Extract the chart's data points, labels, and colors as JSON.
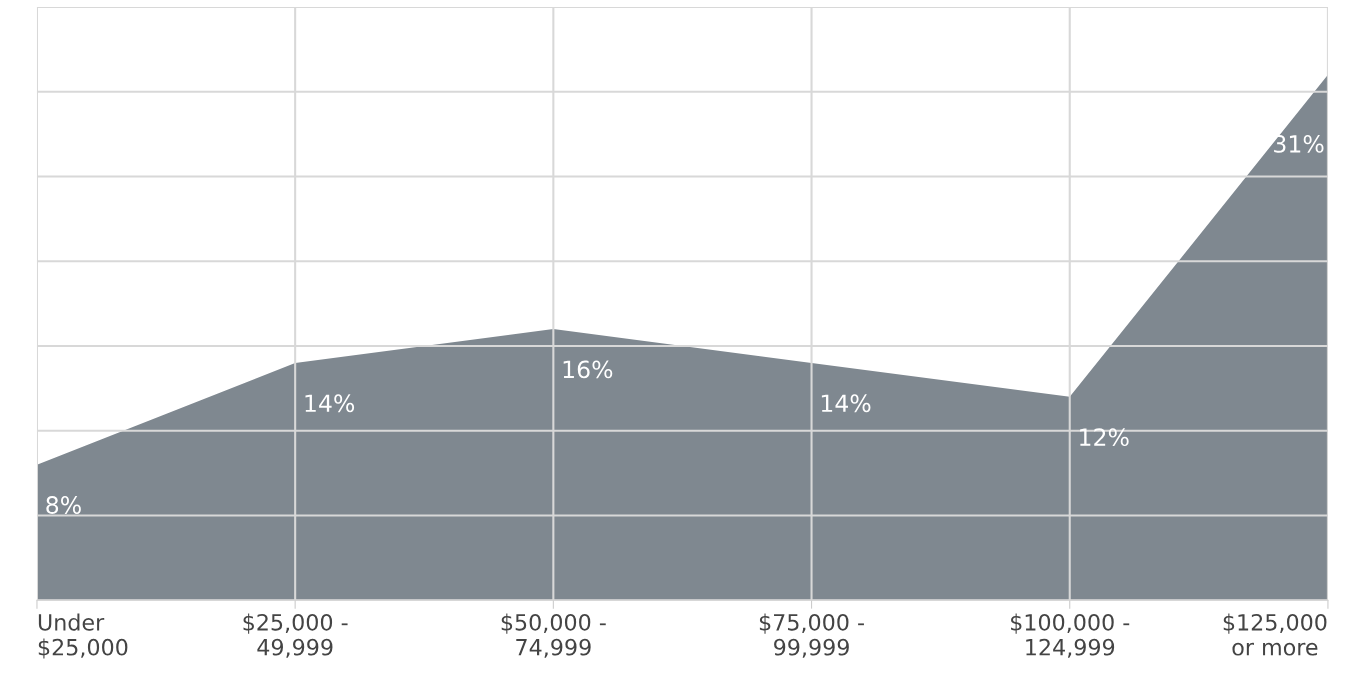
{
  "chart_data": {
    "type": "area",
    "categories": [
      "Under\n$25,000",
      "$25,000 -\n49,999",
      "$50,000 -\n74,999",
      "$75,000 -\n99,999",
      "$100,000 -\n124,999",
      "$125,000\nor more"
    ],
    "values": [
      8,
      14,
      16,
      14,
      12,
      31
    ],
    "color": "#7f8890",
    "data_labels": true,
    "value_labels": [
      "8%",
      "14%",
      "16%",
      "14%",
      "12%",
      "31%"
    ],
    "ylim": [
      0,
      35
    ],
    "yticks": [
      {
        "value": 0,
        "label": null
      },
      {
        "value": 5,
        "label": null
      },
      {
        "value": 10,
        "label": null
      },
      {
        "value": 15,
        "label": null
      },
      {
        "value": 20,
        "label": null
      },
      {
        "value": 25,
        "label": null
      },
      {
        "value": 30,
        "label": null
      },
      {
        "value": 35,
        "label": null
      }
    ],
    "tick_labels": "x",
    "grid": true
  }
}
